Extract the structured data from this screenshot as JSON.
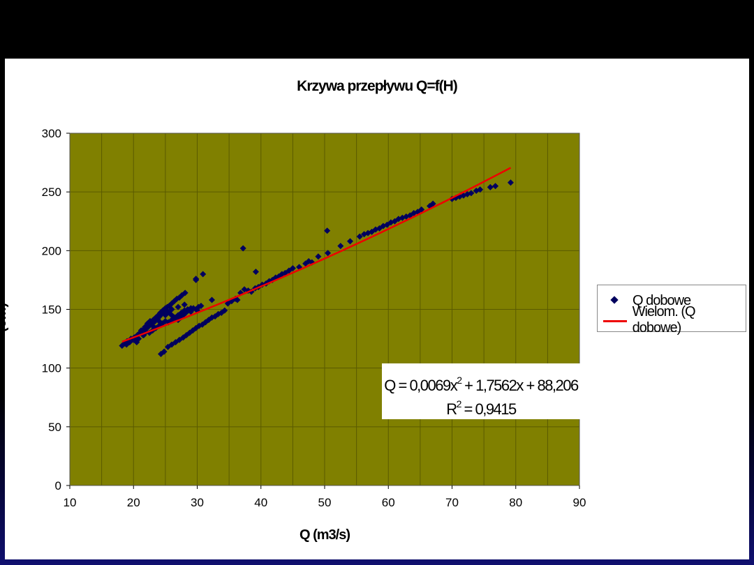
{
  "chart_data": {
    "type": "scatter",
    "title": "Krzywa przepływu   Q=f(H)",
    "xlabel": "Q (m3/s)",
    "ylabel": "(cm)",
    "xlim": [
      10,
      90
    ],
    "ylim": [
      0,
      300
    ],
    "xticks": [
      "10",
      "20",
      "30",
      "40",
      "50",
      "60",
      "70",
      "80",
      "90"
    ],
    "yticks": [
      "0",
      "50",
      "100",
      "150",
      "200",
      "250",
      "300"
    ],
    "grid": true,
    "plot_background": "#808000",
    "legend_position": "right",
    "series": [
      {
        "name": "Q dobowe",
        "marker": "diamond",
        "color": "#00005e",
        "points": [
          [
            18.2,
            119
          ],
          [
            18.6,
            121
          ],
          [
            19.0,
            123
          ],
          [
            19.6,
            125
          ],
          [
            20.1,
            126
          ],
          [
            20.6,
            128
          ],
          [
            21.0,
            130
          ],
          [
            21.4,
            132
          ],
          [
            21.8,
            133
          ],
          [
            22.3,
            135
          ],
          [
            22.6,
            137
          ],
          [
            23.0,
            138
          ],
          [
            23.4,
            140
          ],
          [
            23.8,
            142
          ],
          [
            24.1,
            144
          ],
          [
            24.4,
            146
          ],
          [
            24.7,
            148
          ],
          [
            25.0,
            150
          ],
          [
            25.3,
            152
          ],
          [
            25.6,
            153
          ],
          [
            26.0,
            155
          ],
          [
            26.4,
            157
          ],
          [
            26.8,
            159
          ],
          [
            27.2,
            160
          ],
          [
            27.6,
            162
          ],
          [
            28.1,
            164
          ],
          [
            21.2,
            132
          ],
          [
            21.8,
            135
          ],
          [
            22.2,
            138
          ],
          [
            22.6,
            140
          ],
          [
            23.1,
            141
          ],
          [
            23.5,
            143
          ],
          [
            23.9,
            145
          ],
          [
            24.2,
            147
          ],
          [
            24.6,
            149
          ],
          [
            25.0,
            151
          ],
          [
            25.4,
            148
          ],
          [
            25.8,
            146
          ],
          [
            26.2,
            144
          ],
          [
            26.6,
            142
          ],
          [
            27.0,
            141
          ],
          [
            27.4,
            143
          ],
          [
            27.8,
            145
          ],
          [
            28.2,
            147
          ],
          [
            28.6,
            149
          ],
          [
            29.0,
            150
          ],
          [
            29.4,
            151
          ],
          [
            29.8,
            150
          ],
          [
            30.2,
            152
          ],
          [
            30.6,
            153
          ],
          [
            22.5,
            130
          ],
          [
            23.0,
            132
          ],
          [
            23.5,
            134
          ],
          [
            24.0,
            136
          ],
          [
            24.5,
            138
          ],
          [
            25.0,
            140
          ],
          [
            25.5,
            139
          ],
          [
            26.0,
            141
          ],
          [
            26.5,
            143
          ],
          [
            27.0,
            145
          ],
          [
            27.5,
            147
          ],
          [
            28.0,
            149
          ],
          [
            28.5,
            150
          ],
          [
            29.0,
            148
          ],
          [
            24.3,
            112
          ],
          [
            24.8,
            114
          ],
          [
            25.4,
            118
          ],
          [
            26.0,
            120
          ],
          [
            26.6,
            122
          ],
          [
            27.2,
            124
          ],
          [
            27.8,
            126
          ],
          [
            28.3,
            128
          ],
          [
            28.8,
            130
          ],
          [
            29.3,
            132
          ],
          [
            29.8,
            134
          ],
          [
            30.3,
            136
          ],
          [
            30.8,
            137
          ],
          [
            31.3,
            139
          ],
          [
            31.8,
            141
          ],
          [
            32.3,
            143
          ],
          [
            32.8,
            144
          ],
          [
            33.3,
            146
          ],
          [
            33.8,
            147
          ],
          [
            34.3,
            149
          ],
          [
            20.5,
            122
          ],
          [
            21.5,
            128
          ],
          [
            22.0,
            131
          ],
          [
            23.0,
            136
          ],
          [
            24.0,
            140
          ],
          [
            25.0,
            145
          ],
          [
            26.0,
            150
          ],
          [
            27.0,
            152
          ],
          [
            28.0,
            154
          ],
          [
            29.0,
            151
          ],
          [
            30.0,
            149
          ],
          [
            29.8,
            175
          ],
          [
            30.9,
            180
          ],
          [
            32.3,
            158
          ],
          [
            34.8,
            155
          ],
          [
            35.4,
            157
          ],
          [
            36.0,
            159
          ],
          [
            36.3,
            158
          ],
          [
            36.8,
            164
          ],
          [
            37.4,
            167
          ],
          [
            38.0,
            166
          ],
          [
            38.5,
            165
          ],
          [
            39.1,
            168
          ],
          [
            39.6,
            169
          ],
          [
            40.2,
            171
          ],
          [
            40.8,
            172
          ],
          [
            41.3,
            174
          ],
          [
            41.8,
            175
          ],
          [
            42.3,
            177
          ],
          [
            42.8,
            178
          ],
          [
            43.3,
            180
          ],
          [
            43.8,
            181
          ],
          [
            44.4,
            183
          ],
          [
            45.0,
            185
          ],
          [
            46.0,
            186
          ],
          [
            47.0,
            189
          ],
          [
            47.5,
            191
          ],
          [
            48.0,
            190
          ],
          [
            37.2,
            202
          ],
          [
            39.2,
            182
          ],
          [
            50.4,
            217
          ],
          [
            29.8,
            176
          ],
          [
            49.0,
            195
          ],
          [
            50.5,
            198
          ],
          [
            52.5,
            204
          ],
          [
            54.0,
            208
          ],
          [
            55.5,
            212
          ],
          [
            56.2,
            214
          ],
          [
            56.8,
            215
          ],
          [
            57.4,
            216
          ],
          [
            58.0,
            218
          ],
          [
            58.6,
            219
          ],
          [
            59.2,
            221
          ],
          [
            59.8,
            222
          ],
          [
            60.4,
            224
          ],
          [
            61.0,
            225
          ],
          [
            61.6,
            227
          ],
          [
            62.2,
            228
          ],
          [
            62.8,
            229
          ],
          [
            63.4,
            230
          ],
          [
            64.0,
            232
          ],
          [
            64.6,
            233
          ],
          [
            65.2,
            235
          ],
          [
            66.5,
            238
          ],
          [
            67.0,
            240
          ],
          [
            70.0,
            244
          ],
          [
            70.6,
            245
          ],
          [
            71.2,
            246
          ],
          [
            71.8,
            247
          ],
          [
            72.4,
            248
          ],
          [
            73.0,
            249
          ],
          [
            73.8,
            251
          ],
          [
            74.4,
            252
          ],
          [
            76.0,
            254
          ],
          [
            76.8,
            255
          ],
          [
            79.2,
            258
          ],
          [
            18.9,
            120
          ],
          [
            19.4,
            122
          ],
          [
            20.0,
            124
          ],
          [
            20.8,
            125
          ],
          [
            21.6,
            128
          ]
        ]
      },
      {
        "name": "Wielom. (Q dobowe)",
        "type": "line",
        "color": "#ee0000",
        "fit": {
          "a": 0.0069,
          "b": 1.7562,
          "c": 88.206
        },
        "x_range": [
          18.2,
          79.2
        ]
      }
    ],
    "annotations": {
      "equation": {
        "lhs": "Q",
        "text": "= 0,0069x",
        "exp": "2",
        "rest": " + 1,7562x + 88,206"
      },
      "r2": {
        "lhs": "R",
        "exp": "2",
        "text": " = 0,9415"
      }
    }
  }
}
